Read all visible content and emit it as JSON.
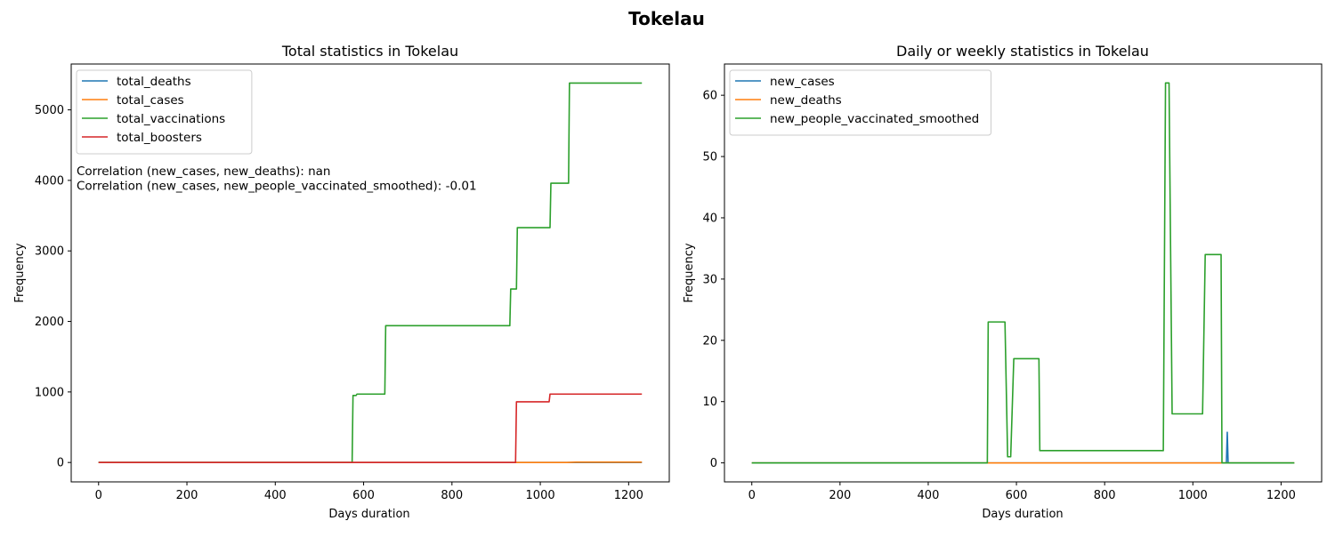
{
  "suptitle": "Tokelau",
  "chart_data": [
    {
      "type": "line",
      "title": "Total statistics in Tokelau",
      "xlabel": "Days duration",
      "ylabel": "Frequency",
      "xlim": [
        -62,
        1292
      ],
      "ylim": [
        -275,
        5650
      ],
      "xticks": [
        0,
        200,
        400,
        600,
        800,
        1000,
        1200
      ],
      "yticks": [
        0,
        1000,
        2000,
        3000,
        4000,
        5000
      ],
      "legend_position": "upper-left",
      "annotations": [
        "Correlation (new_cases, new_deaths): nan",
        "Correlation (new_cases, new_people_vaccinated_smoothed): -0.01"
      ],
      "series": [
        {
          "name": "total_deaths",
          "color": "#1f77b4",
          "x": [
            0,
            1230
          ],
          "y": [
            0,
            0
          ]
        },
        {
          "name": "total_cases",
          "color": "#ff7f0e",
          "x": [
            0,
            1060,
            1080,
            1230
          ],
          "y": [
            0,
            0,
            5,
            5
          ]
        },
        {
          "name": "total_vaccinations",
          "color": "#2ca02c",
          "x": [
            0,
            574,
            576,
            583,
            585,
            648,
            650,
            931,
            933,
            946,
            948,
            1022,
            1024,
            1064,
            1066,
            1230
          ],
          "y": [
            0,
            0,
            950,
            950,
            970,
            970,
            1940,
            1940,
            2460,
            2460,
            3330,
            3330,
            3960,
            3960,
            5380,
            5380
          ]
        },
        {
          "name": "total_boosters",
          "color": "#d62728",
          "x": [
            0,
            944,
            946,
            1020,
            1022,
            1230
          ],
          "y": [
            0,
            0,
            860,
            860,
            970,
            970
          ]
        }
      ]
    },
    {
      "type": "line",
      "title": "Daily or weekly statistics in Tokelau",
      "xlabel": "Days duration",
      "ylabel": "Frequency",
      "xlim": [
        -62,
        1292
      ],
      "ylim": [
        -3.1,
        65.1
      ],
      "xticks": [
        0,
        200,
        400,
        600,
        800,
        1000,
        1200
      ],
      "yticks": [
        0,
        10,
        20,
        30,
        40,
        50,
        60
      ],
      "legend_position": "upper-left",
      "series": [
        {
          "name": "new_cases",
          "color": "#1f77b4",
          "x": [
            0,
            1076,
            1078,
            1080,
            1230
          ],
          "y": [
            0,
            0,
            5,
            0,
            0
          ]
        },
        {
          "name": "new_deaths",
          "color": "#ff7f0e",
          "x": [
            0,
            1230
          ],
          "y": [
            0,
            0
          ]
        },
        {
          "name": "new_people_vaccinated_smoothed",
          "color": "#2ca02c",
          "x": [
            0,
            534,
            536,
            574,
            580,
            587,
            594,
            651,
            653,
            933,
            938,
            946,
            953,
            1022,
            1028,
            1064,
            1066,
            1230
          ],
          "y": [
            0,
            0,
            23,
            23,
            1,
            1,
            17,
            17,
            2,
            2,
            62,
            62,
            8,
            8,
            34,
            34,
            0,
            0
          ]
        }
      ]
    }
  ]
}
